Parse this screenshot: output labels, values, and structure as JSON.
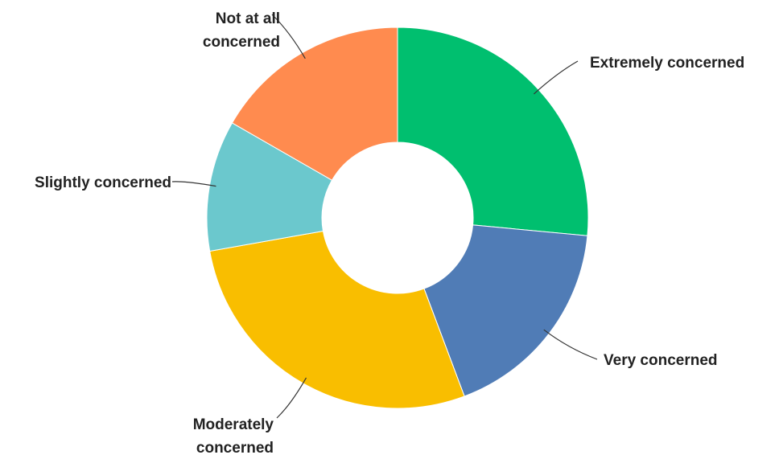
{
  "chart_data": {
    "type": "pie",
    "variant": "donut",
    "title": "",
    "legend": "none",
    "slices": [
      {
        "label": "Extremely concerned",
        "label_lines": [
          "Extremely concerned"
        ],
        "value": 26.5,
        "color": "#00BF6F"
      },
      {
        "label": "Very concerned",
        "label_lines": [
          "Very concerned"
        ],
        "value": 17.8,
        "color": "#507CB6"
      },
      {
        "label": "Moderately concerned",
        "label_lines": [
          "Moderately",
          "concerned"
        ],
        "value": 27.9,
        "color": "#F9BE00"
      },
      {
        "label": "Slightly concerned",
        "label_lines": [
          "Slightly concerned"
        ],
        "value": 11.1,
        "color": "#6BC8CD"
      },
      {
        "label": "Not at all concerned",
        "label_lines": [
          "Not at all",
          "concerned"
        ],
        "value": 16.7,
        "color": "#FF8B4F"
      }
    ]
  }
}
